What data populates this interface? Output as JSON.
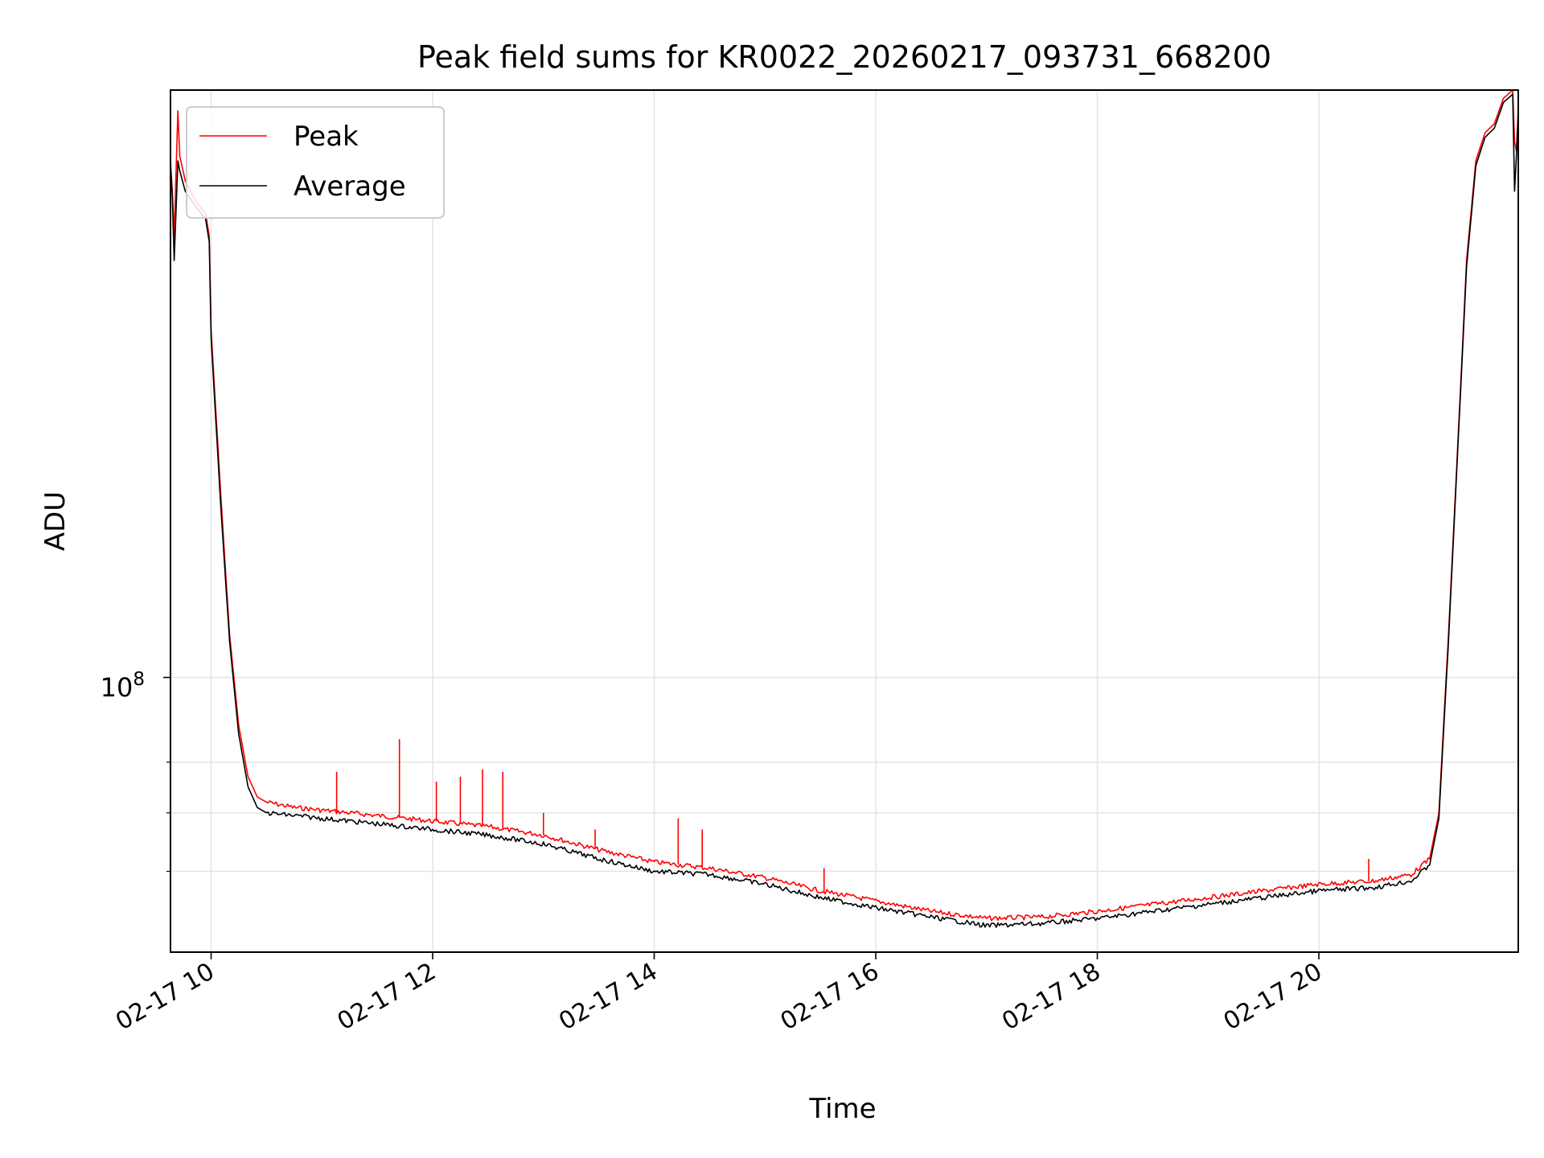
{
  "colors": {
    "peak": "#ff0000",
    "average": "#000000",
    "grid": "#e5e5e5",
    "axes": "#000000",
    "background": "#ffffff"
  },
  "chart_data": {
    "type": "line",
    "title": "Peak field sums for KR0022_20260217_093731_668200",
    "xlabel": "Time",
    "ylabel": "ADU",
    "yscale": "log",
    "grid": true,
    "legend_position": "top-left",
    "xlim": [
      "02-17 09:38",
      "02-17 21:48"
    ],
    "ylim": [
      48500000,
      470000000
    ],
    "x_ticks": [
      "02-17 10",
      "02-17 12",
      "02-17 14",
      "02-17 16",
      "02-17 18",
      "02-17 20"
    ],
    "x_tick_values": [
      "02-17 10:00",
      "02-17 12:00",
      "02-17 14:00",
      "02-17 16:00",
      "02-17 18:00",
      "02-17 20:00"
    ],
    "y_major_tick_label": {
      "base": "10",
      "exponent": "8"
    },
    "y_major_tick_value": 100000000,
    "y_minor_ticks": [
      60000000,
      70000000,
      80000000
    ],
    "x_format": "MM-DD HH:MM",
    "series": [
      {
        "name": "Peak",
        "color": "#ff0000",
        "x": [
          "02-17 09:38",
          "02-17 09:39",
          "02-17 09:40",
          "02-17 09:42",
          "02-17 09:43",
          "02-17 09:46",
          "02-17 09:52",
          "02-17 09:57",
          "02-17 09:59",
          "02-17 10:00",
          "02-17 10:05",
          "02-17 10:10",
          "02-17 10:15",
          "02-17 10:20",
          "02-17 10:25",
          "02-17 10:30",
          "02-17 10:45",
          "02-17 11:00",
          "02-17 11:30",
          "02-17 12:00",
          "02-17 12:30",
          "02-17 13:00",
          "02-17 13:30",
          "02-17 14:00",
          "02-17 14:30",
          "02-17 15:00",
          "02-17 15:30",
          "02-17 16:00",
          "02-17 16:30",
          "02-17 17:00",
          "02-17 17:30",
          "02-17 18:00",
          "02-17 18:30",
          "02-17 19:00",
          "02-17 19:30",
          "02-17 20:00",
          "02-17 20:30",
          "02-17 20:50",
          "02-17 21:00",
          "02-17 21:05",
          "02-17 21:10",
          "02-17 21:15",
          "02-17 21:20",
          "02-17 21:25",
          "02-17 21:30",
          "02-17 21:35",
          "02-17 21:40",
          "02-17 21:45",
          "02-17 21:46",
          "02-17 21:47",
          "02-17 21:48"
        ],
        "values": [
          390000000,
          360000000,
          320000000,
          445000000,
          395000000,
          370000000,
          350000000,
          340000000,
          320000000,
          250000000,
          165000000,
          112000000,
          88000000,
          77000000,
          73000000,
          72000000,
          71000000,
          70500000,
          69500000,
          68500000,
          67500000,
          66000000,
          63500000,
          61500000,
          60500000,
          59000000,
          57000000,
          55500000,
          54000000,
          53000000,
          53200000,
          54000000,
          55000000,
          56000000,
          57000000,
          58000000,
          58500000,
          59500000,
          62000000,
          70000000,
          110000000,
          180000000,
          300000000,
          390000000,
          420000000,
          430000000,
          460000000,
          470000000,
          410000000,
          400000000,
          450000000
        ]
      },
      {
        "name": "Average",
        "color": "#000000",
        "x": [
          "02-17 09:38",
          "02-17 09:39",
          "02-17 09:40",
          "02-17 09:42",
          "02-17 09:43",
          "02-17 09:46",
          "02-17 09:52",
          "02-17 09:57",
          "02-17 09:59",
          "02-17 10:00",
          "02-17 10:05",
          "02-17 10:10",
          "02-17 10:15",
          "02-17 10:20",
          "02-17 10:25",
          "02-17 10:30",
          "02-17 10:45",
          "02-17 11:00",
          "02-17 11:30",
          "02-17 12:00",
          "02-17 12:30",
          "02-17 13:00",
          "02-17 13:30",
          "02-17 14:00",
          "02-17 14:30",
          "02-17 15:00",
          "02-17 15:30",
          "02-17 16:00",
          "02-17 16:30",
          "02-17 17:00",
          "02-17 17:30",
          "02-17 18:00",
          "02-17 18:30",
          "02-17 19:00",
          "02-17 19:30",
          "02-17 20:00",
          "02-17 20:30",
          "02-17 20:50",
          "02-17 21:00",
          "02-17 21:05",
          "02-17 21:10",
          "02-17 21:15",
          "02-17 21:20",
          "02-17 21:25",
          "02-17 21:30",
          "02-17 21:35",
          "02-17 21:40",
          "02-17 21:45",
          "02-17 21:46",
          "02-17 21:47",
          "02-17 21:48"
        ],
        "values": [
          385000000,
          355000000,
          300000000,
          390000000,
          380000000,
          360000000,
          345000000,
          335000000,
          315000000,
          245000000,
          160000000,
          110000000,
          86000000,
          75000000,
          71000000,
          70000000,
          69500000,
          69000000,
          68000000,
          67000000,
          66000000,
          64500000,
          62000000,
          60000000,
          59500000,
          58000000,
          56000000,
          54500000,
          53200000,
          52000000,
          52300000,
          53000000,
          54000000,
          55000000,
          56000000,
          57000000,
          57500000,
          58500000,
          61000000,
          69000000,
          108000000,
          178000000,
          295000000,
          385000000,
          415000000,
          425000000,
          455000000,
          465000000,
          360000000,
          395000000,
          440000000
        ]
      }
    ],
    "spikes": [
      {
        "series": "Peak",
        "x": "02-17 11:42",
        "value": 85000000
      },
      {
        "series": "Peak",
        "x": "02-17 11:08",
        "value": 78000000
      },
      {
        "series": "Peak",
        "x": "02-17 12:02",
        "value": 76000000
      },
      {
        "series": "Peak",
        "x": "02-17 12:15",
        "value": 77000000
      },
      {
        "series": "Peak",
        "x": "02-17 12:27",
        "value": 78500000
      },
      {
        "series": "Peak",
        "x": "02-17 12:38",
        "value": 78000000
      },
      {
        "series": "Peak",
        "x": "02-17 13:00",
        "value": 70000000
      },
      {
        "series": "Peak",
        "x": "02-17 13:28",
        "value": 67000000
      },
      {
        "series": "Peak",
        "x": "02-17 14:13",
        "value": 69000000
      },
      {
        "series": "Peak",
        "x": "02-17 14:26",
        "value": 67000000
      },
      {
        "series": "Peak",
        "x": "02-17 15:32",
        "value": 60500000
      },
      {
        "series": "Peak",
        "x": "02-17 20:27",
        "value": 62000000
      }
    ]
  }
}
